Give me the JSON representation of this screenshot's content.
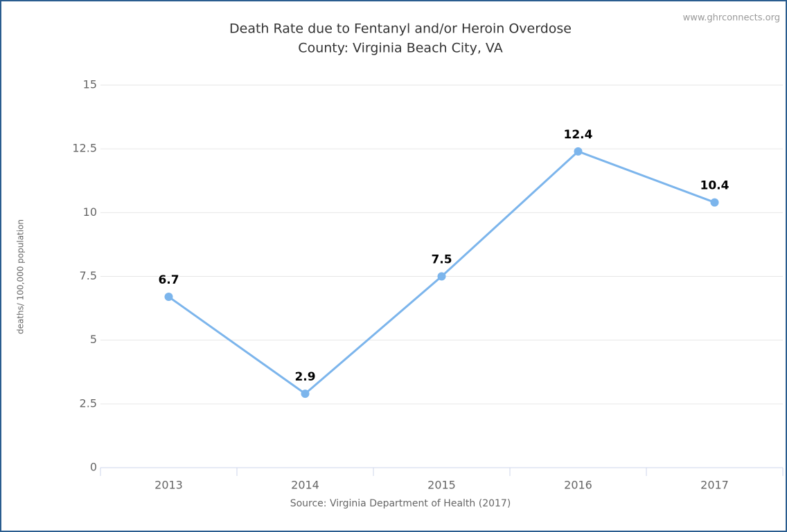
{
  "chart_data": {
    "type": "line",
    "title": "Death Rate due to Fentanyl and/or Heroin Overdose",
    "subtitle": "County: Virginia Beach City, VA",
    "credit": "www.ghrconnects.org",
    "y_label": "deaths/ 100,000 population",
    "x_label": "Source: Virginia Department of Health (2017)",
    "categories": [
      "2013",
      "2014",
      "2015",
      "2016",
      "2017"
    ],
    "values": [
      6.7,
      2.9,
      7.5,
      12.4,
      10.4
    ],
    "color": "#7cb5ec",
    "ylim": [
      0,
      15
    ],
    "yticks": [
      0,
      2.5,
      5,
      7.5,
      10,
      12.5,
      15
    ],
    "grid": true
  }
}
